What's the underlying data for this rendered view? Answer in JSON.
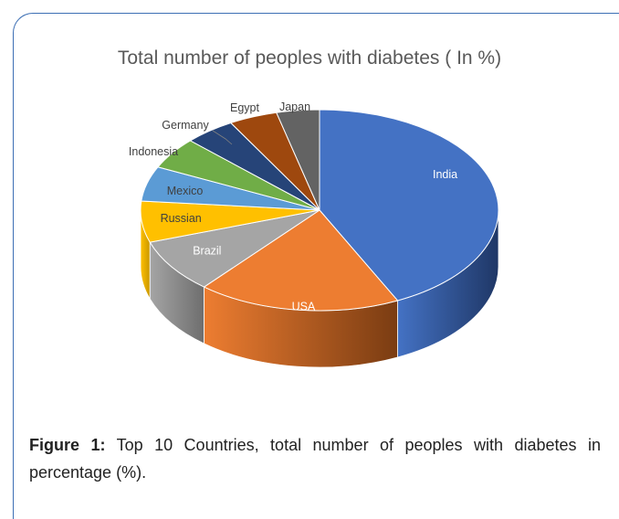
{
  "chart_data": {
    "type": "pie",
    "title": "Total number of peoples with diabetes ( In %)",
    "categories": [
      "India",
      "USA",
      "Brazil",
      "Russian",
      "Mexico",
      "Indonesia",
      "Germany",
      "Egypt",
      "Japan"
    ],
    "values": [
      42,
      18,
      8.5,
      6.5,
      5.5,
      5,
      4.5,
      4.3,
      3.8
    ],
    "colors": [
      "#4472c4",
      "#ed7d31",
      "#a5a5a5",
      "#ffc000",
      "#5b9bd5",
      "#70ad47",
      "#264478",
      "#9e480e",
      "#636363"
    ],
    "side_colors": [
      "#1f3766",
      "#7a3c12",
      "#6e6e6e",
      "#c99700",
      "#3a6d9a",
      "#4a7a2e",
      "#1a2e52",
      "#6a300a",
      "#454545"
    ],
    "style": "3d",
    "legend": "none",
    "label_colors": [
      "#ffffff",
      "#ffffff",
      "#ffffff",
      "#404040",
      "#404040",
      "#404040",
      "#404040",
      "#404040",
      "#404040"
    ]
  },
  "caption": {
    "label": "Figure 1:",
    "text": " Top 10 Countries, total number of peoples with diabetes in percentage (%)."
  }
}
